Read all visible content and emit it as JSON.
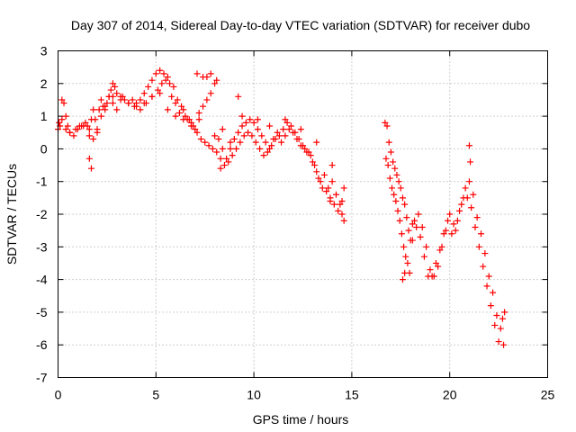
{
  "chart_data": {
    "type": "scatter",
    "title": "Day 307 of 2014, Sidereal Day-to-day VTEC variation (SDTVAR) for receiver dubo",
    "xlabel": "GPS time / hours",
    "ylabel": "SDTVAR / TECUs",
    "xlim": [
      0,
      25
    ],
    "ylim": [
      -7,
      3
    ],
    "xticks": [
      0,
      5,
      10,
      15,
      20,
      25
    ],
    "yticks": [
      -7,
      -6,
      -5,
      -4,
      -3,
      -2,
      -1,
      0,
      1,
      2,
      3
    ],
    "grid": true,
    "marker": "+",
    "color": "#ff0000",
    "series": [
      {
        "name": "dubo",
        "x": [
          0.0,
          0.1,
          0.2,
          0.3,
          0.4,
          0.5,
          0.6,
          0.8,
          1.0,
          1.2,
          1.4,
          1.5,
          1.6,
          1.7,
          1.8,
          1.9,
          2.0,
          2.1,
          2.2,
          2.3,
          2.4,
          2.5,
          2.6,
          2.7,
          2.8,
          2.9,
          3.0,
          3.2,
          3.4,
          3.6,
          3.8,
          4.0,
          4.2,
          4.4,
          4.6,
          4.8,
          5.0,
          5.2,
          5.4,
          5.6,
          5.8,
          6.0,
          6.2,
          6.4,
          6.6,
          6.8,
          7.0,
          7.2,
          7.4,
          7.6,
          7.8,
          8.0,
          8.2,
          8.4,
          8.6,
          8.8,
          9.0,
          9.2,
          9.4,
          9.6,
          9.8,
          10.0,
          10.2,
          10.4,
          10.6,
          10.8,
          11.0,
          11.2,
          11.4,
          11.6,
          11.8,
          12.0,
          12.2,
          12.4,
          12.6,
          12.8,
          13.0,
          13.2,
          13.4,
          13.6,
          13.8,
          14.0,
          14.2,
          14.4,
          14.6,
          16.7,
          16.8,
          16.9,
          17.0,
          17.1,
          17.2,
          17.3,
          17.4,
          17.5,
          17.6,
          17.7,
          17.8,
          17.9,
          18.0,
          18.2,
          18.4,
          18.6,
          18.8,
          19.0,
          19.2,
          19.4,
          19.6,
          19.8,
          20.0,
          20.2,
          20.4,
          20.6,
          20.8,
          21.0,
          21.2,
          21.4,
          21.6,
          21.8,
          22.0,
          22.2,
          22.4,
          22.6,
          22.8,
          0.05,
          0.2,
          0.4,
          0.6,
          0.9,
          1.1,
          1.3,
          1.6,
          1.8,
          2.0,
          2.2,
          2.4,
          2.6,
          2.8,
          3.0,
          3.3,
          3.6,
          3.9,
          4.2,
          4.5,
          4.8,
          5.1,
          5.3,
          5.5,
          5.7,
          5.9,
          6.1,
          6.3,
          6.5,
          6.7,
          6.9,
          7.1,
          7.3,
          7.5,
          7.7,
          7.9,
          8.1,
          8.3,
          8.5,
          8.7,
          8.9,
          9.1,
          9.3,
          9.5,
          9.7,
          9.9,
          10.1,
          10.3,
          10.5,
          10.7,
          10.9,
          11.1,
          11.3,
          11.5,
          11.7,
          11.9,
          12.1,
          12.3,
          12.5,
          12.7,
          12.9,
          13.1,
          13.3,
          13.5,
          13.7,
          13.9,
          14.1,
          14.3,
          14.5,
          16.75,
          16.85,
          16.95,
          17.05,
          17.15,
          17.25,
          17.35,
          17.45,
          17.55,
          17.65,
          17.75,
          17.85,
          17.95,
          18.1,
          18.3,
          18.5,
          18.7,
          18.9,
          19.1,
          19.3,
          19.5,
          19.7,
          19.9,
          20.1,
          20.3,
          20.5,
          20.7,
          20.9,
          21.1,
          21.3,
          21.5,
          21.7,
          21.9,
          22.1,
          22.3,
          22.5,
          22.7,
          2.8,
          3.2,
          3.6,
          4.0,
          4.4,
          4.8,
          5.2,
          5.6,
          6.0,
          6.4,
          6.8,
          7.2,
          7.6,
          7.8,
          8.0,
          8.4,
          8.8,
          9.2,
          9.4,
          10.2,
          10.8,
          11.6,
          12.4,
          13.2,
          14.0,
          1.6,
          1.7,
          7.1,
          7.4,
          8.1,
          8.3,
          13.9,
          14.5,
          14.6,
          17.6,
          17.7,
          18.1,
          21.0,
          21.05,
          22.75
        ],
        "y": [
          0.6,
          0.7,
          1.5,
          1.4,
          1.0,
          0.7,
          0.5,
          0.4,
          0.6,
          0.7,
          0.8,
          0.7,
          0.6,
          0.9,
          1.2,
          0.9,
          0.6,
          1.2,
          1.5,
          1.3,
          1.2,
          1.4,
          1.6,
          1.8,
          2.0,
          1.9,
          1.7,
          1.6,
          1.5,
          1.4,
          1.5,
          1.4,
          1.5,
          1.7,
          1.9,
          2.1,
          2.3,
          2.4,
          2.3,
          2.2,
          1.6,
          1.4,
          1.1,
          1.2,
          0.9,
          0.8,
          0.6,
          0.9,
          1.3,
          2.2,
          2.3,
          0.4,
          0.3,
          0.0,
          -0.3,
          0.0,
          0.3,
          0.5,
          0.7,
          0.8,
          0.9,
          0.8,
          0.6,
          0.4,
          0.2,
          0.0,
          0.3,
          0.5,
          0.2,
          0.4,
          0.6,
          0.5,
          0.3,
          0.1,
          0.0,
          -0.1,
          -0.4,
          -0.7,
          -1.0,
          -0.8,
          -1.2,
          -1.0,
          -1.4,
          -1.7,
          -1.2,
          0.8,
          0.7,
          0.2,
          -0.1,
          -0.4,
          -0.6,
          -0.8,
          -1.0,
          -1.2,
          -1.5,
          -1.7,
          -2.1,
          -2.5,
          -2.8,
          -2.2,
          -2.0,
          -2.4,
          -3.0,
          -3.7,
          -3.9,
          -3.6,
          -3.0,
          -2.5,
          -2.0,
          -2.3,
          -2.2,
          -1.7,
          -1.2,
          -1.0,
          -1.4,
          -2.1,
          -2.6,
          -3.2,
          -3.9,
          -4.4,
          -5.1,
          -5.5,
          -5.0,
          0.8,
          0.9,
          0.6,
          0.5,
          0.6,
          0.7,
          0.7,
          0.4,
          0.3,
          0.5,
          1.0,
          1.3,
          1.6,
          1.4,
          1.2,
          1.6,
          1.4,
          1.3,
          1.2,
          1.4,
          1.6,
          1.8,
          2.0,
          2.1,
          2.0,
          1.9,
          1.5,
          1.3,
          1.0,
          0.9,
          0.7,
          0.5,
          0.3,
          0.2,
          0.1,
          0.0,
          -0.1,
          -0.3,
          -0.5,
          -0.4,
          -0.2,
          0.0,
          0.2,
          0.4,
          0.5,
          0.4,
          0.2,
          0.0,
          -0.2,
          -0.1,
          0.1,
          0.3,
          0.4,
          0.6,
          0.8,
          0.7,
          0.5,
          0.3,
          0.1,
          -0.1,
          -0.2,
          -0.5,
          -0.9,
          -1.2,
          -1.3,
          -1.5,
          -1.7,
          -1.9,
          -1.6,
          -0.3,
          -0.5,
          -0.9,
          -1.2,
          -1.4,
          -1.6,
          -1.9,
          -2.2,
          -2.6,
          -3.0,
          -3.3,
          -3.5,
          -3.8,
          -2.8,
          -2.4,
          -2.7,
          -3.3,
          -3.9,
          -3.9,
          -3.5,
          -3.1,
          -2.6,
          -2.2,
          -2.6,
          -2.5,
          -1.9,
          -1.5,
          -1.5,
          -1.8,
          -2.4,
          -3.0,
          -3.6,
          -4.2,
          -4.8,
          -5.4,
          -5.9,
          -5.2,
          1.6,
          1.5,
          1.4,
          1.3,
          1.4,
          1.6,
          1.7,
          1.2,
          1.0,
          0.9,
          0.7,
          1.1,
          1.5,
          1.7,
          2.0,
          0.6,
          0.2,
          1.6,
          1.0,
          0.9,
          0.7,
          0.9,
          0.6,
          0.2,
          -0.5,
          -0.3,
          -0.6,
          2.3,
          2.2,
          2.1,
          -0.6,
          -1.6,
          -2.0,
          -2.2,
          -4.0,
          -3.8,
          -2.3,
          0.1,
          -0.4,
          -6.0
        ]
      }
    ]
  }
}
